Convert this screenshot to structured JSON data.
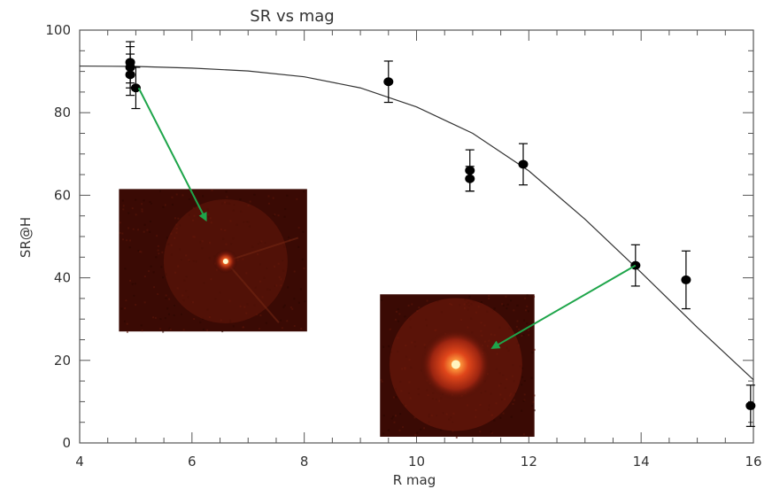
{
  "chart_data": {
    "type": "scatter",
    "title": "SR vs mag",
    "xlabel": "R mag",
    "ylabel": "SR@H",
    "xlim": [
      4,
      16
    ],
    "ylim": [
      0,
      100
    ],
    "x_ticks": [
      4,
      6,
      8,
      10,
      12,
      14,
      16
    ],
    "y_ticks": [
      0,
      20,
      40,
      60,
      80,
      100
    ],
    "grid": false,
    "legend": "none",
    "series": [
      {
        "type": "scatter_with_errorbars",
        "points": [
          {
            "x": 4.9,
            "y": 92.2,
            "err": 5.0
          },
          {
            "x": 4.9,
            "y": 91.0,
            "err": 5.0
          },
          {
            "x": 4.9,
            "y": 89.2,
            "err": 5.0
          },
          {
            "x": 5.0,
            "y": 86.0,
            "err": 5.0
          },
          {
            "x": 9.5,
            "y": 87.5,
            "err": 5.0
          },
          {
            "x": 10.95,
            "y": 66.0,
            "err": 5.0
          },
          {
            "x": 10.95,
            "y": 64.0,
            "err": 3.0
          },
          {
            "x": 11.9,
            "y": 67.5,
            "err": 5.0
          },
          {
            "x": 13.9,
            "y": 43.0,
            "err": 5.0
          },
          {
            "x": 14.8,
            "y": 39.5,
            "err": 7.0
          },
          {
            "x": 15.95,
            "y": 9.0,
            "err": 5.0
          }
        ]
      },
      {
        "type": "line",
        "x": [
          4,
          5,
          6,
          7,
          8,
          9,
          10,
          11,
          12,
          13,
          14,
          15,
          16
        ],
        "y": [
          91.3,
          91.2,
          90.8,
          90.1,
          88.7,
          86.0,
          81.4,
          75.0,
          65.9,
          54.2,
          41.3,
          28.0,
          15.3
        ]
      }
    ],
    "annotations": [
      {
        "type": "arrow",
        "color": "#1ea54a",
        "from": {
          "x": 5.05,
          "y": 86.0
        },
        "to": {
          "x": 6.25,
          "y": 54.0
        }
      },
      {
        "type": "arrow",
        "color": "#1ea54a",
        "from": {
          "x": 13.9,
          "y": 43.0
        },
        "to": {
          "x": 11.35,
          "y": 23.0
        }
      }
    ],
    "insets": [
      {
        "name": "psf-bright-star",
        "x_range": [
          4.7,
          8.05
        ],
        "y_range": [
          27,
          61.5
        ],
        "core": {
          "x": 6.6,
          "y": 44.0
        },
        "core_radius": "small"
      },
      {
        "name": "psf-faint-star",
        "x_range": [
          9.35,
          12.1
        ],
        "y_range": [
          1.5,
          36
        ],
        "core": {
          "x": 10.7,
          "y": 19.0
        },
        "core_radius": "large"
      }
    ],
    "colors": {
      "axes": "#555555",
      "points": "#000000",
      "curve": "#333333",
      "arrow": "#1ea54a",
      "inset_background": "#3a0a04"
    }
  }
}
